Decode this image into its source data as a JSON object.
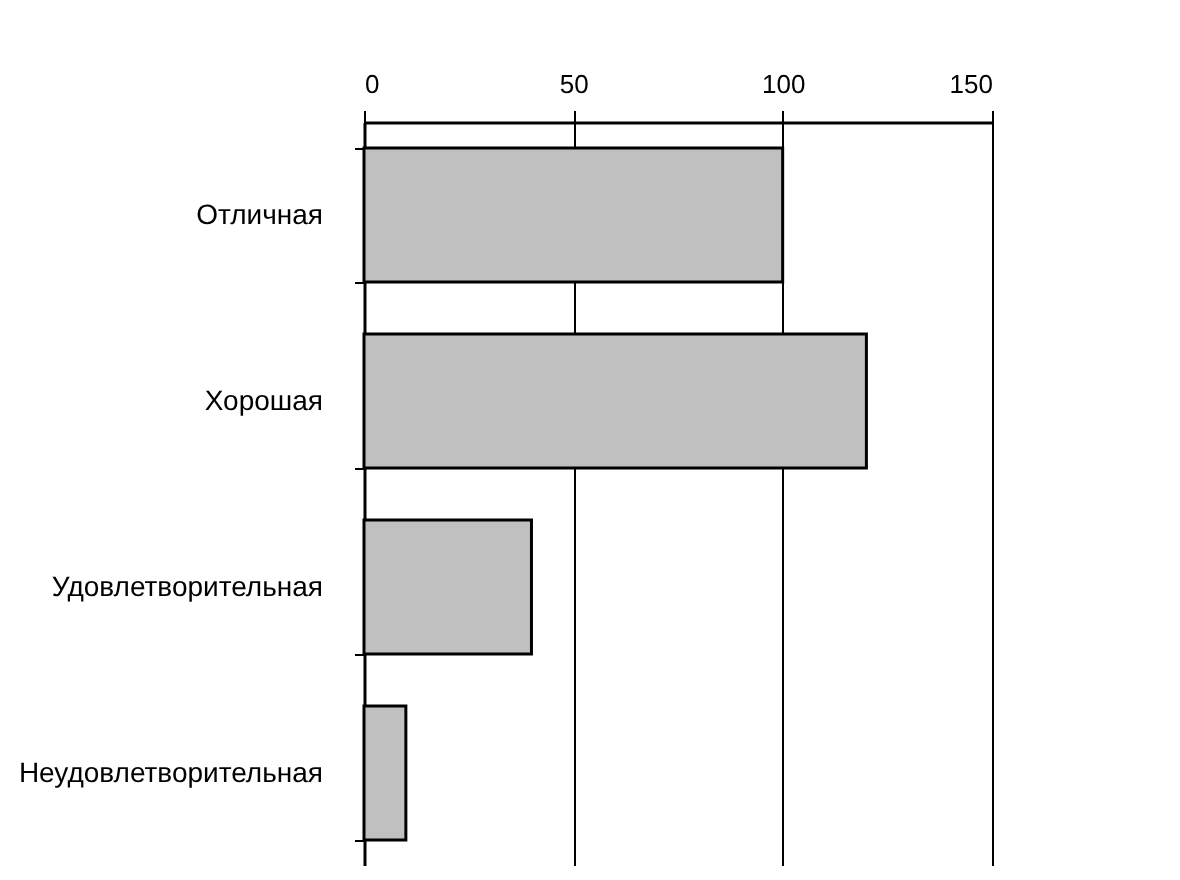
{
  "chart_data": {
    "type": "bar",
    "orientation": "horizontal",
    "categories": [
      "Отличная",
      "Хорошая",
      "Удовлетворительная",
      "Неудовлетворительная"
    ],
    "values": [
      100,
      120,
      40,
      10
    ],
    "color": "#c0c0c0",
    "xlim": [
      0,
      150
    ],
    "xticks": [
      0,
      50,
      100,
      150
    ],
    "grid": "x"
  }
}
